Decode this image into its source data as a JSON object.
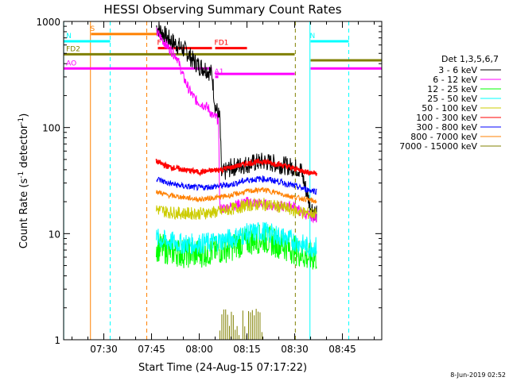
{
  "chart_data": {
    "type": "line",
    "title": "HESSI Observing Summary Count Rates",
    "xlabel": "Start Time (24-Aug-15 07:17:22)",
    "ylabel_main": "Count Rate (s",
    "ylabel_sup1": "-1",
    "ylabel_mid": " detector",
    "ylabel_sup2": "-1",
    "ylabel_end": ")",
    "y_scale": "log",
    "ylim": [
      1,
      1000
    ],
    "xlim": [
      "07:17:22",
      "08:57:22"
    ],
    "x_ticks": [
      "07:30",
      "07:45",
      "08:00",
      "08:15",
      "08:30",
      "08:45"
    ],
    "x_tick_minutes": [
      450,
      465,
      480,
      495,
      510,
      525
    ],
    "y_ticks": [
      "1",
      "10",
      "100",
      "1000"
    ],
    "y_tick_values": [
      1,
      10,
      100,
      1000
    ],
    "legend_title": "Det 1,3,5,6,7",
    "legend_placement": "right",
    "footer": "8-Jun-2019 02:52",
    "series": [
      {
        "name": "3 - 6 keV",
        "color": "#000000",
        "times": [
          466.5,
          470,
          473,
          476,
          478,
          480,
          482,
          483,
          484,
          485,
          486.5,
          487,
          490,
          495,
          500,
          505,
          510,
          512,
          513,
          515,
          517
        ],
        "values": [
          900,
          700,
          600,
          520,
          430,
          380,
          360,
          340,
          320,
          160,
          120,
          36,
          42,
          45,
          48,
          45,
          42,
          40,
          30,
          18,
          15
        ]
      },
      {
        "name": "6 - 12 keV",
        "color": "#ff00ff",
        "times": [
          466.5,
          470,
          473,
          475,
          477,
          479,
          481,
          482,
          483,
          484,
          486,
          486.5,
          490,
          495,
          500,
          505,
          510,
          512,
          514,
          517
        ],
        "values": [
          800,
          580,
          460,
          300,
          220,
          180,
          165,
          160,
          150,
          130,
          120,
          17,
          18,
          20,
          19,
          18,
          18,
          16,
          15,
          14
        ]
      },
      {
        "name": "12 - 25 keV",
        "color": "#00ff00",
        "times": [
          466.5,
          470,
          475,
          480,
          486,
          490,
          495,
          500,
          505,
          510,
          514,
          517
        ],
        "values": [
          7.5,
          7.0,
          6.5,
          6.5,
          7.0,
          7.5,
          8.5,
          9.0,
          8.0,
          7.0,
          6.0,
          6.0
        ]
      },
      {
        "name": "25 - 50 keV",
        "color": "#00ffff",
        "times": [
          466.5,
          470,
          475,
          480,
          486,
          490,
          495,
          500,
          505,
          510,
          514,
          517
        ],
        "values": [
          9.0,
          8.5,
          8.0,
          8.0,
          8.5,
          9.0,
          10.0,
          10.5,
          9.5,
          8.5,
          7.5,
          7.5
        ]
      },
      {
        "name": "50 - 100 keV",
        "color": "#cccc00",
        "times": [
          466.5,
          470,
          475,
          480,
          486,
          490,
          495,
          500,
          505,
          510,
          514,
          517
        ],
        "values": [
          17,
          16,
          15.5,
          15.5,
          16,
          17,
          18.5,
          19,
          18,
          16.5,
          15.5,
          15.5
        ]
      },
      {
        "name": "100 - 300 keV",
        "color": "#ff0000",
        "times": [
          466.5,
          470,
          475,
          480,
          486,
          490,
          495,
          500,
          505,
          510,
          514,
          517
        ],
        "values": [
          48,
          43,
          40,
          38,
          40,
          42,
          46,
          48,
          45,
          41,
          38,
          37
        ]
      },
      {
        "name": "300 - 800 keV",
        "color": "#0000ff",
        "times": [
          466.5,
          470,
          475,
          480,
          486,
          490,
          495,
          500,
          505,
          510,
          514,
          517
        ],
        "values": [
          33,
          30,
          28,
          27,
          28,
          29,
          32,
          33,
          31,
          28,
          26,
          25
        ]
      },
      {
        "name": "800 - 7000 keV",
        "color": "#ff8000",
        "times": [
          466.5,
          470,
          475,
          480,
          486,
          490,
          495,
          500,
          505,
          510,
          514,
          517
        ],
        "values": [
          25,
          23,
          22,
          21,
          22,
          23,
          25,
          26,
          24,
          22,
          21,
          20
        ]
      },
      {
        "name": "7000 - 15000 keV",
        "color": "#808000",
        "times": [
          486.5,
          488,
          489,
          490,
          492,
          493,
          495,
          497,
          498,
          500
        ],
        "values": [
          2,
          2,
          2,
          2,
          2,
          2,
          2,
          2,
          2,
          2
        ]
      }
    ],
    "flag_bars": [
      {
        "label": "S",
        "color": "#ff8000",
        "start": 446,
        "end": 467,
        "level": 760
      },
      {
        "label": "N",
        "color": "#00ffff",
        "start": 437.4,
        "end": 452,
        "level": 650
      },
      {
        "label": "N",
        "color": "#00ffff",
        "start": 515,
        "end": 527,
        "level": 650
      },
      {
        "label": "F",
        "color": "#ff0000",
        "start": 467,
        "end": 484,
        "level": 560
      },
      {
        "label": "FD1",
        "color": "#ff0000",
        "start": 485,
        "end": 495,
        "level": 560
      },
      {
        "label": "FD2",
        "color": "#808000",
        "start": 437.4,
        "end": 510,
        "level": 490
      },
      {
        "label": "",
        "color": "#808000",
        "start": 515,
        "end": 537.4,
        "level": 430
      },
      {
        "label": "AO",
        "color": "#ff00ff",
        "start": 437.4,
        "end": 484,
        "level": 360
      },
      {
        "label": "",
        "color": "#ff00ff",
        "start": 485,
        "end": 510,
        "level": 320
      },
      {
        "label": "",
        "color": "#ff00ff",
        "start": 515,
        "end": 537.4,
        "level": 360
      },
      {
        "label": "A1",
        "color": "#ff00ff",
        "start": 485,
        "end": 486,
        "level": 300
      }
    ],
    "vertical_lines": [
      {
        "time": 437.4,
        "color": "#00ffff",
        "style": "solid"
      },
      {
        "time": 445.8,
        "color": "#ff8000",
        "style": "solid"
      },
      {
        "time": 452,
        "color": "#00ffff",
        "style": "dashed"
      },
      {
        "time": 463.5,
        "color": "#ff8000",
        "style": "dashed"
      },
      {
        "time": 510.2,
        "color": "#808000",
        "style": "dashed"
      },
      {
        "time": 514.8,
        "color": "#00ffff",
        "style": "solid"
      },
      {
        "time": 527,
        "color": "#00ffff",
        "style": "dashed"
      }
    ]
  }
}
